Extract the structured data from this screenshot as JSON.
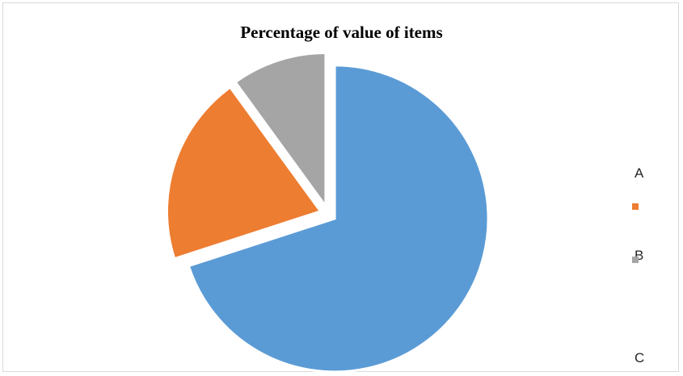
{
  "chart_data": {
    "type": "pie",
    "title": "Percentage of value of items",
    "categories": [
      "A",
      "B",
      "C"
    ],
    "values": [
      70,
      20,
      10
    ],
    "colors": [
      "#5B9BD5",
      "#ED7D31",
      "#A5A5A5"
    ],
    "exploded": true,
    "start_angle_deg": 0,
    "legend_position": "right"
  }
}
